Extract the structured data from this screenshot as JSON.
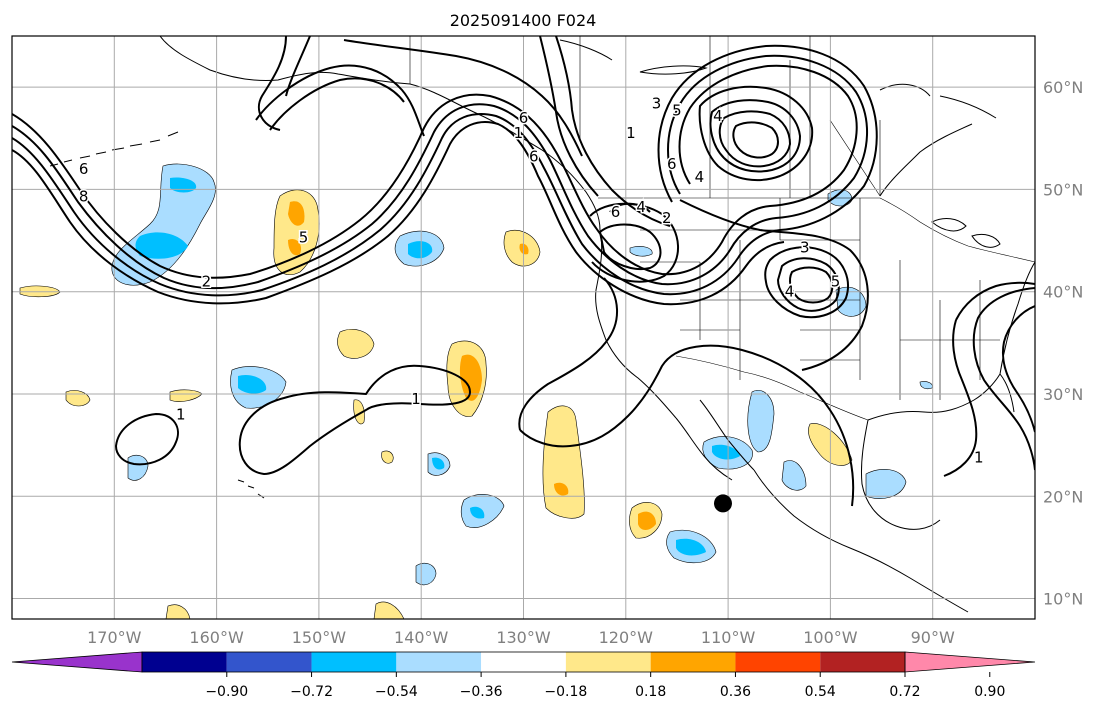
{
  "title": "2025091400 F024",
  "map": {
    "lon_range": [
      -180,
      -80
    ],
    "lat_range": [
      8,
      65
    ],
    "lat_ticks": [
      {
        "value": 60,
        "label": "60°N"
      },
      {
        "value": 50,
        "label": "50°N"
      },
      {
        "value": 40,
        "label": "40°N"
      },
      {
        "value": 30,
        "label": "30°N"
      },
      {
        "value": 20,
        "label": "20°N"
      },
      {
        "value": 10,
        "label": "10°N"
      }
    ],
    "lon_ticks": [
      {
        "value": -170,
        "label": "170°W"
      },
      {
        "value": -160,
        "label": "160°W"
      },
      {
        "value": -150,
        "label": "150°W"
      },
      {
        "value": -140,
        "label": "140°W"
      },
      {
        "value": -130,
        "label": "130°W"
      },
      {
        "value": -120,
        "label": "120°W"
      },
      {
        "value": -110,
        "label": "110°W"
      },
      {
        "value": -100,
        "label": "100°W"
      },
      {
        "value": -90,
        "label": "90°W"
      }
    ],
    "grid": true,
    "marker": {
      "lon": -110.5,
      "lat": 19.3,
      "color": "#000000"
    }
  },
  "contour_labels": [
    {
      "text": "6",
      "lon": -173,
      "lat": 52
    },
    {
      "text": "8",
      "lon": -173,
      "lat": 49.3
    },
    {
      "text": "2",
      "lon": -161,
      "lat": 41
    },
    {
      "text": "5",
      "lon": -151.5,
      "lat": 45.3
    },
    {
      "text": "6",
      "lon": -130,
      "lat": 57
    },
    {
      "text": "1",
      "lon": -130.5,
      "lat": 55.5
    },
    {
      "text": "6",
      "lon": -129,
      "lat": 53.2
    },
    {
      "text": "1",
      "lon": -119.5,
      "lat": 55.5
    },
    {
      "text": "3",
      "lon": -117,
      "lat": 58.4
    },
    {
      "text": "5",
      "lon": -115,
      "lat": 57.7
    },
    {
      "text": "4",
      "lon": -111,
      "lat": 57.2
    },
    {
      "text": "6",
      "lon": -115.5,
      "lat": 52.5
    },
    {
      "text": "4",
      "lon": -112.8,
      "lat": 51.2
    },
    {
      "text": "3",
      "lon": -102.5,
      "lat": 44.3
    },
    {
      "text": "5",
      "lon": -99.5,
      "lat": 41
    },
    {
      "text": "4",
      "lon": -104,
      "lat": 40
    },
    {
      "text": "6",
      "lon": -121,
      "lat": 47.8
    },
    {
      "text": "4",
      "lon": -118.5,
      "lat": 48.3
    },
    {
      "text": "2",
      "lon": -116,
      "lat": 47.2
    },
    {
      "text": "1",
      "lon": -163.5,
      "lat": 28
    },
    {
      "text": "1",
      "lon": -140.5,
      "lat": 29.5
    },
    {
      "text": "1",
      "lon": -85.5,
      "lat": 23.8
    }
  ],
  "colorbar": {
    "colors": [
      "#9933cc",
      "#000090",
      "#3355cc",
      "#00bfff",
      "#aaddff",
      "#ffffff",
      "#ffe88a",
      "#ffa500",
      "#ff4400",
      "#b22222",
      "#ff88aa"
    ],
    "ticks": [
      "−0.90",
      "−0.72",
      "−0.54",
      "−0.36",
      "−0.18",
      "0.18",
      "0.36",
      "0.54",
      "0.72",
      "0.90"
    ]
  },
  "colors": {
    "blue_light": "#aaddff",
    "blue": "#00bfff",
    "yellow": "#ffe88a",
    "orange": "#ffa500",
    "grid": "#aaaaaa",
    "coast": "#000000"
  }
}
